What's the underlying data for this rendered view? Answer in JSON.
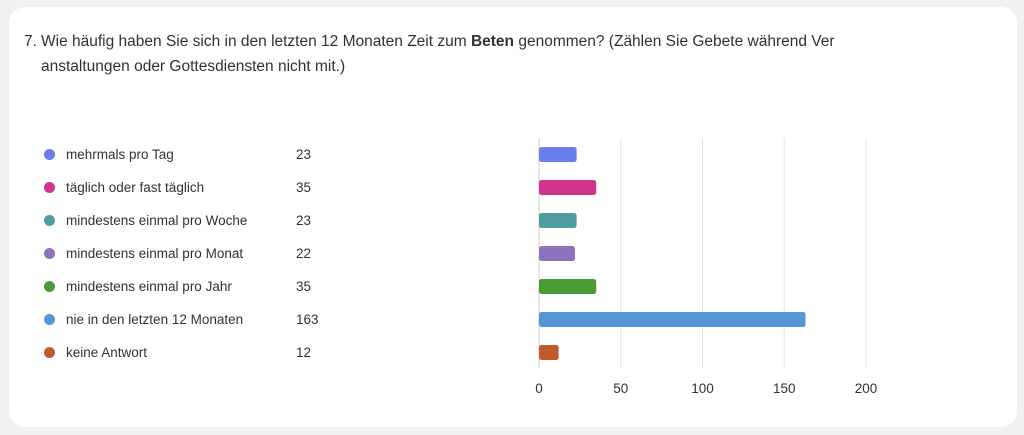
{
  "question": {
    "number": "7.",
    "text_before": "Wie häufig haben Sie sich in den letzten 12 Monaten Zeit zum ",
    "text_bold": "Beten",
    "text_after_line1": " genommen? (Zählen Sie Gebete während Ver",
    "text_line2": "anstaltungen oder Gottesdiensten nicht mit.)"
  },
  "chart_data": {
    "type": "bar",
    "orientation": "horizontal",
    "categories": [
      "mehrmals pro Tag",
      "täglich oder fast täglich",
      "mindestens einmal pro Woche",
      "mindestens einmal pro Monat",
      "mindestens einmal pro Jahr",
      "nie in den letzten 12 Monaten",
      "keine Antwort"
    ],
    "values": [
      23,
      35,
      23,
      22,
      35,
      163,
      12
    ],
    "value_labels": [
      "23",
      "35",
      "23",
      "22",
      "35",
      "163",
      "12"
    ],
    "colors": [
      "#6a7de8",
      "#d1338f",
      "#4f9e9f",
      "#8f72bd",
      "#4a9b33",
      "#5795d9",
      "#c25a2a"
    ],
    "xlim": [
      0,
      200
    ],
    "xticks": [
      0,
      50,
      100,
      150,
      200
    ],
    "xtick_labels": [
      "0",
      "50",
      "100",
      "150",
      "200"
    ],
    "grid": true,
    "legend": "left"
  }
}
